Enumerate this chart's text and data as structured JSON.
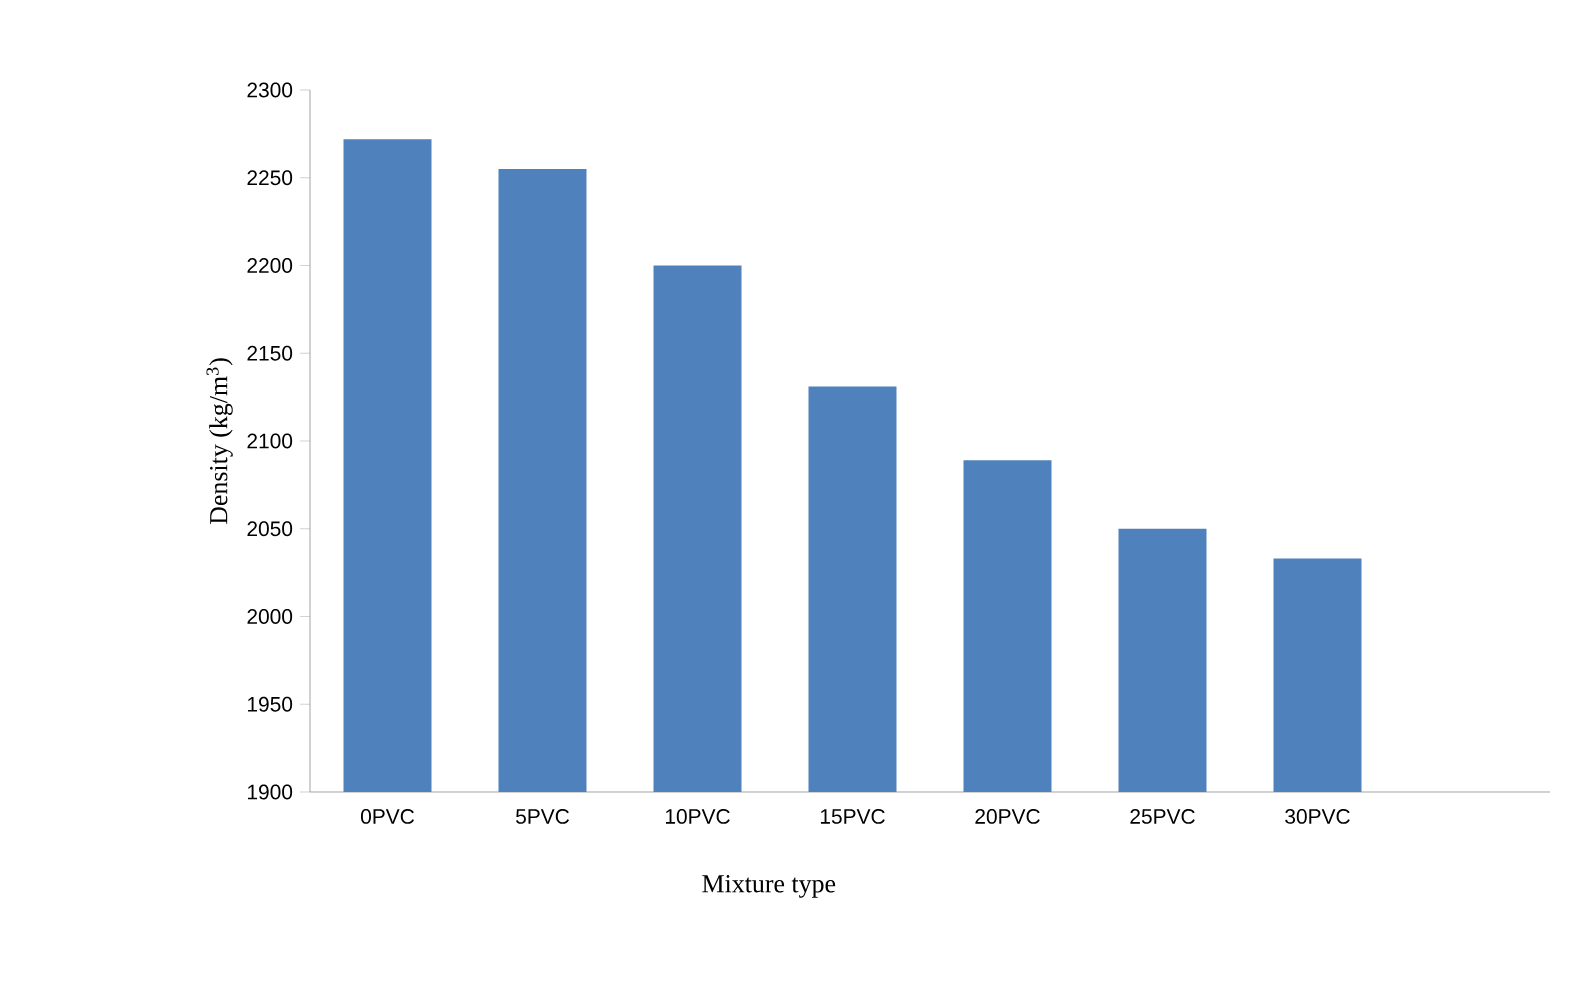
{
  "chart_data": {
    "type": "bar",
    "xlabel": "Mixture type",
    "ylabel": "Density (kg/m$^{3}$)",
    "categories": [
      "0PVC",
      "5PVC",
      "10PVC",
      "15PVC",
      "20PVC",
      "25PVC",
      "30PVC",
      null
    ],
    "values": [
      2272,
      2255,
      2200,
      2131,
      2089,
      2050,
      2033,
      null
    ],
    "color": "#4f81bd",
    "ylim": [
      1900,
      2300
    ],
    "yticks": [
      1900,
      1950,
      2000,
      2050,
      2100,
      2150,
      2200,
      2250,
      2300
    ],
    "grid": false
  }
}
